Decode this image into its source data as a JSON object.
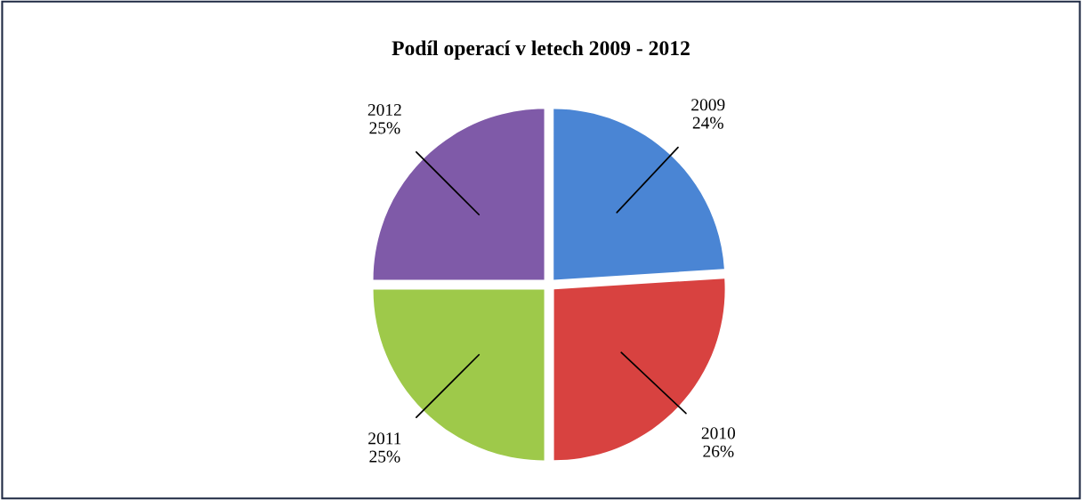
{
  "chart_data": {
    "type": "pie",
    "title": "Podíl operací v letech 2009 - 2012",
    "categories": [
      "2009",
      "2010",
      "2011",
      "2012"
    ],
    "values": [
      24,
      26,
      25,
      25
    ],
    "value_labels": [
      "24%",
      "26%",
      "25%",
      "25%"
    ],
    "colors": [
      "#4a85d4",
      "#d84240",
      "#9ec94a",
      "#7f5aa8"
    ]
  }
}
